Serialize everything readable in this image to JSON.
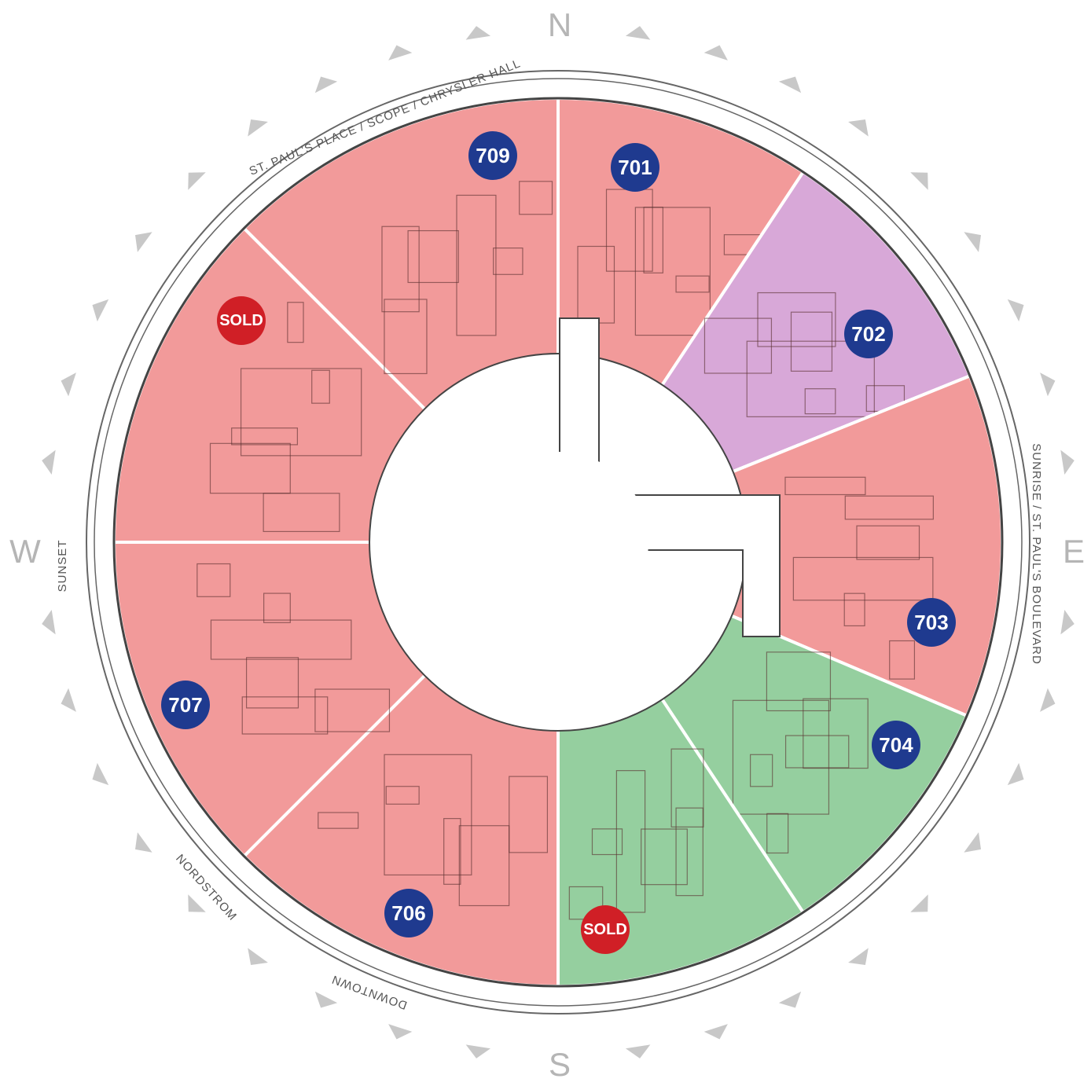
{
  "compass": {
    "north": "N",
    "south": "S",
    "east": "E",
    "west": "W"
  },
  "streets": {
    "north": "ST. PAUL'S PLACE / SCOPE / CHRYSLER HALL",
    "east": "SUNRISE / ST. PAUL'S BOULEVARD",
    "west": "SUNSET",
    "southwest": "NORDSTROM",
    "south": "DOWNTOWN"
  },
  "units": [
    {
      "label": "701",
      "fill": "#f29a9a",
      "badge_color": "#1f3a8f"
    },
    {
      "label": "702",
      "fill": "#d8a8d8",
      "badge_color": "#1f3a8f"
    },
    {
      "label": "703",
      "fill": "#f29a9a",
      "badge_color": "#1f3a8f"
    },
    {
      "label": "704",
      "fill": "#95cf9f",
      "badge_color": "#1f3a8f"
    },
    {
      "label": "SOLD",
      "fill": "#95cf9f",
      "badge_color": "#d01f26"
    },
    {
      "label": "706",
      "fill": "#f29a9a",
      "badge_color": "#1f3a8f"
    },
    {
      "label": "707",
      "fill": "#f29a9a",
      "badge_color": "#1f3a8f"
    },
    {
      "label": "SOLD",
      "fill": "#f29a9a",
      "badge_color": "#d01f26"
    },
    {
      "label": "709",
      "fill": "#f29a9a",
      "badge_color": "#1f3a8f"
    }
  ]
}
